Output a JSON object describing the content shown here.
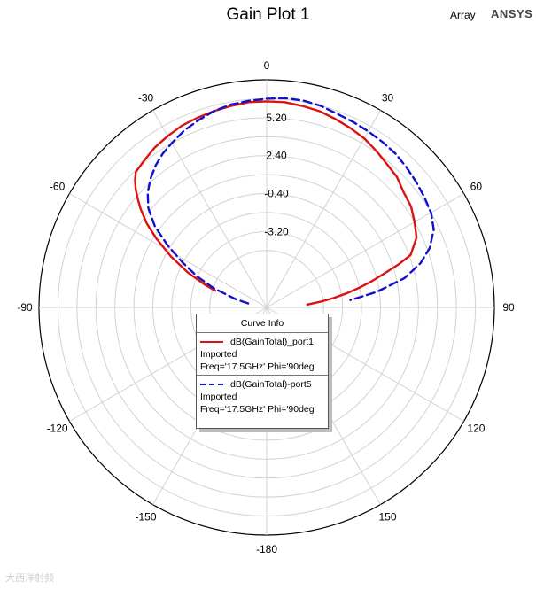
{
  "title": "Gain Plot 1",
  "product_label": "Array",
  "brand": "ANSYS",
  "watermark": "大西洋射频",
  "chart_data": {
    "type": "polar",
    "title": "Gain Plot 1",
    "angle_unit": "deg",
    "angle_zero": "top",
    "angle_direction": "clockwise",
    "angle_ticks": [
      0,
      30,
      60,
      90,
      120,
      150,
      -180,
      -150,
      -120,
      -90,
      -60,
      -30
    ],
    "angle_tick_labels": [
      "0",
      "30",
      "60",
      "90",
      "120",
      "150",
      "-180",
      "-150",
      "-120",
      "-90",
      "-60",
      "-30"
    ],
    "radial_unit": "dB",
    "rlim": [
      -8.8,
      8.0
    ],
    "radial_ticks": [
      -3.2,
      -0.4,
      2.4,
      5.2
    ],
    "radial_tick_labels": [
      "-3.20",
      "-0.40",
      "2.40",
      "5.20"
    ],
    "grid": true,
    "legend_title": "Curve Info",
    "legend_position": "center",
    "series": [
      {
        "name": "dB(GainTotal)_port1",
        "source": "Imported",
        "context": "Freq='17.5GHz' Phi='90deg'",
        "color": "#dd1111",
        "dash": "solid",
        "theta": [
          -72,
          -70,
          -66,
          -62,
          -58,
          -55,
          -52,
          -50,
          -48,
          -46,
          -44,
          -40,
          -35,
          -30,
          -25,
          -20,
          -15,
          -10,
          -5,
          0,
          5,
          10,
          15,
          20,
          25,
          30,
          35,
          40,
          45,
          50,
          55,
          60,
          65,
          70,
          72,
          74,
          76,
          78,
          80,
          82,
          84,
          86
        ],
        "r": [
          -4.8,
          -4.0,
          -2.4,
          -0.8,
          0.8,
          2.0,
          3.0,
          3.6,
          4.2,
          4.7,
          5.1,
          5.3,
          5.6,
          5.8,
          6.0,
          6.1,
          6.2,
          6.3,
          6.4,
          6.4,
          6.4,
          6.3,
          6.2,
          6.0,
          5.8,
          5.6,
          5.3,
          5.0,
          4.8,
          4.4,
          4.2,
          3.8,
          3.4,
          2.5,
          1.4,
          0.2,
          -0.8,
          -1.8,
          -2.8,
          -3.8,
          -4.8,
          -5.8
        ]
      },
      {
        "name": "dB(GainTotal)-port5",
        "source": "Imported",
        "context": "Freq='17.5GHz' Phi='90deg'",
        "color": "#1111cc",
        "dash": "dashed",
        "theta": [
          -78,
          -75,
          -70,
          -66,
          -62,
          -58,
          -54,
          -50,
          -46,
          -42,
          -38,
          -34,
          -30,
          -25,
          -20,
          -15,
          -10,
          -5,
          0,
          5,
          10,
          15,
          20,
          25,
          30,
          35,
          40,
          45,
          50,
          55,
          60,
          65,
          70,
          74,
          78,
          82,
          85
        ],
        "r": [
          -7.4,
          -6.4,
          -4.6,
          -3.2,
          -1.8,
          -0.2,
          1.4,
          2.6,
          3.4,
          4.0,
          4.5,
          4.9,
          5.2,
          5.6,
          5.9,
          6.2,
          6.4,
          6.5,
          6.6,
          6.7,
          6.7,
          6.6,
          6.4,
          6.3,
          6.2,
          6.1,
          6.0,
          5.8,
          5.6,
          5.4,
          5.2,
          4.8,
          4.0,
          3.0,
          1.6,
          -0.6,
          -2.6
        ]
      }
    ]
  }
}
